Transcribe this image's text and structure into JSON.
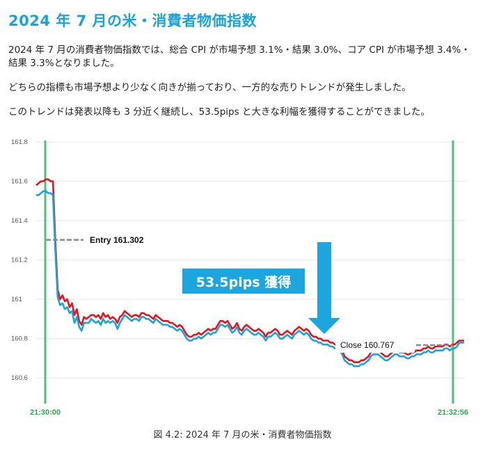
{
  "article": {
    "title": "2024 年 7 月の米・消費者物価指数",
    "paragraphs": [
      "2024 年 7 月の消費者物価指数では、総合 CPI が市場予想 3.1%・結果 3.0%、コア CPI が市場予想 3.4%・結果 3.3%となりました。",
      "どちらの指標も市場予想より少なく向きが揃っており、一方的な売りトレンドが発生しました。",
      "このトレンドは発表以降も 3 分近く継続し、53.5pips と大きな利幅を獲得することができました。"
    ],
    "caption": "図 4.2: 2024 年 7 月の米・消費者物価指数"
  },
  "colors": {
    "title": "#1aa3d9",
    "bid_line": "#e8121e",
    "ask_line": "#1aa3dd",
    "time_marker": "#4cc17a",
    "level_line": "#8a8a8a",
    "badge_bg": "#1ba6e0",
    "arrow": "#1ba6e0",
    "time_label": "#2ea84e"
  },
  "chart_data": {
    "type": "line",
    "ylim": [
      160.47,
      161.8
    ],
    "y_ticks": [
      161.8,
      161.6,
      161.4,
      161.2,
      161,
      160.8,
      160.6
    ],
    "y_tick_labels": [
      "161.8",
      "161.6",
      "161.4",
      "161.2",
      "161",
      "160.8",
      "160.6"
    ],
    "grid": true,
    "x_labels": [
      "21:30:00",
      "21:32:56"
    ],
    "series": [
      {
        "values": [
          161.58,
          161.59,
          161.6,
          161.6,
          161.61,
          161.61,
          161.6,
          161.6,
          161.3,
          161.05,
          161.0,
          161.02,
          160.99,
          161.0,
          160.96,
          160.98,
          160.92,
          160.95,
          160.89,
          160.87,
          160.91,
          160.9,
          160.91,
          160.92,
          160.92,
          160.91,
          160.92,
          160.9,
          160.93,
          160.91,
          160.92,
          160.9,
          160.91,
          160.9,
          160.88,
          160.91,
          160.92,
          160.94,
          160.93,
          160.92,
          160.91,
          160.92,
          160.92,
          160.91,
          160.93,
          160.93,
          160.92,
          160.92,
          160.91,
          160.9,
          160.92,
          160.91,
          160.9,
          160.89,
          160.89,
          160.89,
          160.88,
          160.88,
          160.87,
          160.86,
          160.87,
          160.86,
          160.84,
          160.82,
          160.81,
          160.81,
          160.82,
          160.82,
          160.83,
          160.82,
          160.83,
          160.84,
          160.85,
          160.84,
          160.85,
          160.85,
          160.87,
          160.89,
          160.89,
          160.88,
          160.89,
          160.87,
          160.85,
          160.86,
          160.88,
          160.85,
          160.84,
          160.86,
          160.87,
          160.86,
          160.85,
          160.84,
          160.84,
          160.85,
          160.84,
          160.83,
          160.81,
          160.83,
          160.83,
          160.84,
          160.85,
          160.84,
          160.82,
          160.82,
          160.83,
          160.84,
          160.83,
          160.82,
          160.84,
          160.85,
          160.86,
          160.85,
          160.84,
          160.85,
          160.84,
          160.82,
          160.81,
          160.81,
          160.8,
          160.8,
          160.79,
          160.79,
          160.79,
          160.78,
          160.78,
          160.77,
          160.77,
          160.76,
          160.74,
          160.71,
          160.7,
          160.69,
          160.69,
          160.68,
          160.68,
          160.68,
          160.69,
          160.69,
          160.7,
          160.71,
          160.73,
          160.74,
          160.74,
          160.74,
          160.73,
          160.72,
          160.71,
          160.71,
          160.72,
          160.73,
          160.74,
          160.74,
          160.73,
          160.73,
          160.73,
          160.72,
          160.72,
          160.73,
          160.73,
          160.74,
          160.74,
          160.74,
          160.75,
          160.75,
          160.76,
          160.75,
          160.75,
          160.76,
          160.76,
          160.76,
          160.76,
          160.77,
          160.77,
          160.76,
          160.77,
          160.77,
          160.78,
          160.79,
          160.79,
          160.79
        ]
      },
      {
        "values": [
          161.53,
          161.53,
          161.54,
          161.55,
          161.55,
          161.54,
          161.54,
          161.53,
          161.25,
          161.01,
          160.97,
          160.98,
          160.95,
          160.96,
          160.93,
          160.94,
          160.88,
          160.91,
          160.86,
          160.84,
          160.88,
          160.88,
          160.88,
          160.9,
          160.89,
          160.88,
          160.89,
          160.87,
          160.9,
          160.88,
          160.89,
          160.88,
          160.89,
          160.88,
          160.85,
          160.88,
          160.9,
          160.92,
          160.91,
          160.9,
          160.89,
          160.9,
          160.9,
          160.89,
          160.91,
          160.91,
          160.9,
          160.9,
          160.89,
          160.88,
          160.9,
          160.89,
          160.88,
          160.87,
          160.87,
          160.87,
          160.86,
          160.86,
          160.85,
          160.84,
          160.85,
          160.84,
          160.82,
          160.8,
          160.79,
          160.79,
          160.8,
          160.8,
          160.81,
          160.8,
          160.81,
          160.82,
          160.83,
          160.82,
          160.83,
          160.83,
          160.85,
          160.87,
          160.87,
          160.86,
          160.87,
          160.85,
          160.83,
          160.84,
          160.86,
          160.83,
          160.82,
          160.84,
          160.85,
          160.84,
          160.83,
          160.82,
          160.82,
          160.83,
          160.82,
          160.81,
          160.79,
          160.81,
          160.81,
          160.82,
          160.83,
          160.82,
          160.8,
          160.8,
          160.81,
          160.82,
          160.81,
          160.8,
          160.82,
          160.83,
          160.84,
          160.83,
          160.82,
          160.83,
          160.82,
          160.8,
          160.79,
          160.79,
          160.78,
          160.78,
          160.77,
          160.77,
          160.77,
          160.76,
          160.76,
          160.75,
          160.75,
          160.74,
          160.72,
          160.69,
          160.68,
          160.67,
          160.67,
          160.66,
          160.66,
          160.66,
          160.67,
          160.67,
          160.68,
          160.69,
          160.71,
          160.72,
          160.72,
          160.72,
          160.71,
          160.7,
          160.69,
          160.69,
          160.7,
          160.71,
          160.72,
          160.72,
          160.71,
          160.71,
          160.71,
          160.7,
          160.7,
          160.71,
          160.71,
          160.72,
          160.72,
          160.72,
          160.73,
          160.73,
          160.74,
          160.73,
          160.73,
          160.74,
          160.74,
          160.74,
          160.74,
          160.75,
          160.75,
          160.74,
          160.75,
          160.75,
          160.76,
          160.78,
          160.78,
          160.78
        ]
      }
    ],
    "annotations": {
      "entry": {
        "label": "Entry 161.302",
        "value": 161.302
      },
      "close": {
        "label": "Close 160.767",
        "value": 160.767
      },
      "badge": "53.5pips 獲得"
    }
  }
}
